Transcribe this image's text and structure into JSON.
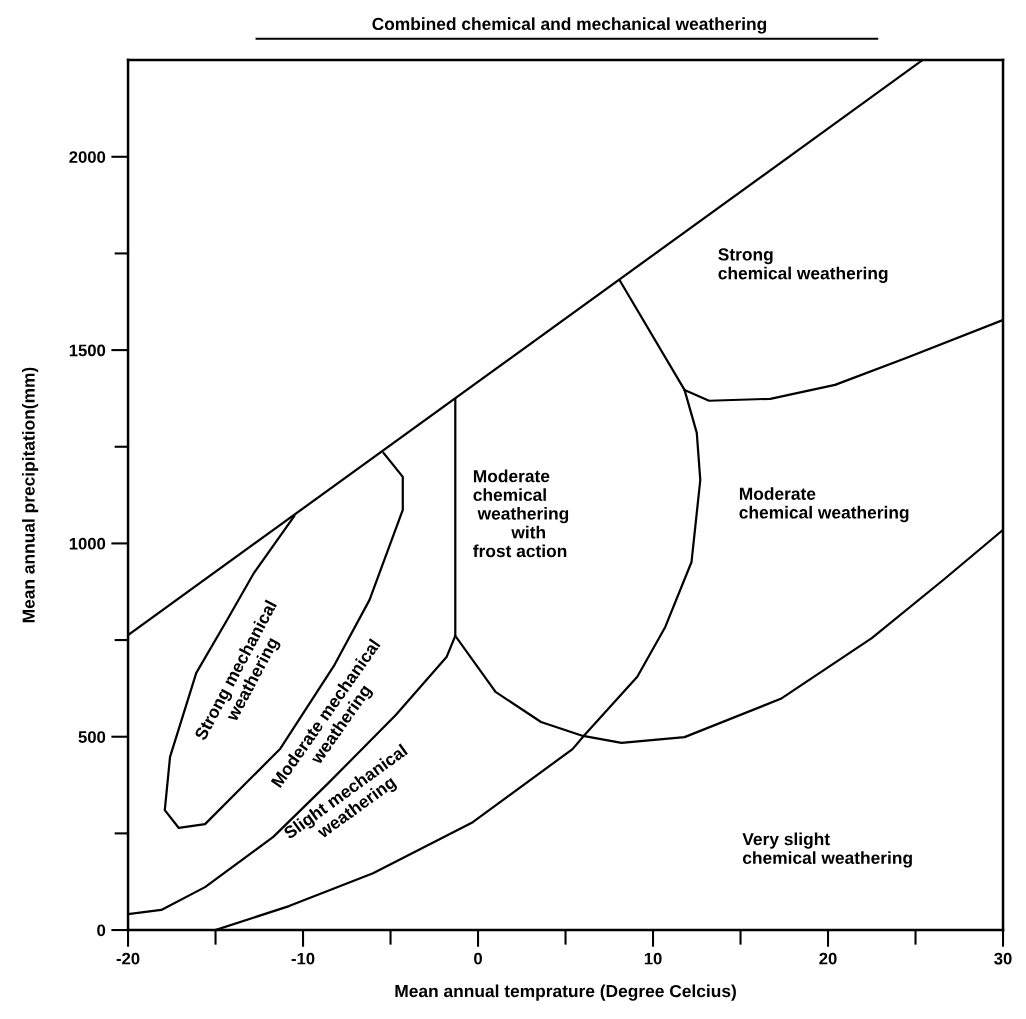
{
  "chart_data": {
    "type": "line",
    "title": "Combined chemical and mechanical weathering",
    "xlabel": "Mean annual temprature (Degree Celcius)",
    "ylabel": "Mean annual precipitation(mm)",
    "xlim": [
      -20,
      30
    ],
    "ylim": [
      0,
      2250
    ],
    "xticks": [
      -20,
      {
        "value": -15,
        "label": null
      },
      -10,
      {
        "value": -5,
        "label": null
      },
      0,
      {
        "value": 5,
        "label": null
      },
      10,
      {
        "value": 15,
        "label": null
      },
      20,
      {
        "value": 25,
        "label": null
      },
      30
    ],
    "yticks": [
      0,
      {
        "value": 250,
        "label": null
      },
      500,
      {
        "value": 750,
        "label": null
      },
      1000,
      {
        "value": 1250,
        "label": null
      },
      1500,
      {
        "value": 1750,
        "label": null
      },
      2000
    ],
    "grid": false,
    "marker": "none",
    "line_style": "solid",
    "series": [
      {
        "color": "#000000",
        "x": [
          -20,
          25.4
        ],
        "values": [
          763,
          2250
        ]
      },
      {
        "color": "#000000",
        "x": [
          8.1,
          11.8,
          12.5,
          12.7,
          12.2,
          10.7,
          9.1,
          6.1,
          5.4,
          -0.3,
          -6.0,
          -10.8,
          -15.0
        ],
        "values": [
          1680,
          1397,
          1286,
          1164,
          952,
          784,
          655,
          505,
          468,
          279,
          147,
          62,
          0
        ]
      },
      {
        "color": "#000000",
        "x": [
          -1.3,
          1.0,
          3.6,
          6.0,
          8.2,
          11.8,
          17.3,
          22.5,
          26.6,
          30
        ],
        "values": [
          761,
          616,
          538,
          502,
          484,
          499,
          598,
          755,
          906,
          1035
        ]
      },
      {
        "color": "#000000",
        "x": [
          -1.3,
          -1.3,
          -1.8,
          -4.7,
          -8.6,
          -11.7,
          -15.6,
          -18.1,
          -20
        ],
        "values": [
          1372,
          761,
          706,
          556,
          378,
          241,
          111,
          52,
          41
        ]
      },
      {
        "color": "#000000",
        "x": [
          -5.4,
          -4.3,
          -4.3,
          -6.2,
          -8.2,
          -11.3,
          -15.6,
          -17.1,
          -17.9,
          -17.6,
          -16.1,
          -14.3,
          -12.8,
          -10.5
        ],
        "values": [
          1234,
          1172,
          1087,
          854,
          686,
          469,
          274,
          264,
          310,
          448,
          665,
          805,
          924,
          1071
        ]
      },
      {
        "color": "#000000",
        "x": [
          11.8,
          13.2,
          16.7,
          20.4,
          24.5,
          30
        ],
        "values": [
          1397,
          1369,
          1374,
          1410,
          1480,
          1578
        ]
      }
    ],
    "annotations": [
      "Strong\nchemical weathering",
      "Moderate\nchemical weathering",
      "Moderate\nchemical\n weathering\n        with\nfrost action",
      "Very slight\nchemical weathering",
      "Strong mechanical\nweathering",
      "Moderate mechanical\nweathering",
      "Slight mechanical\nweathering"
    ]
  }
}
